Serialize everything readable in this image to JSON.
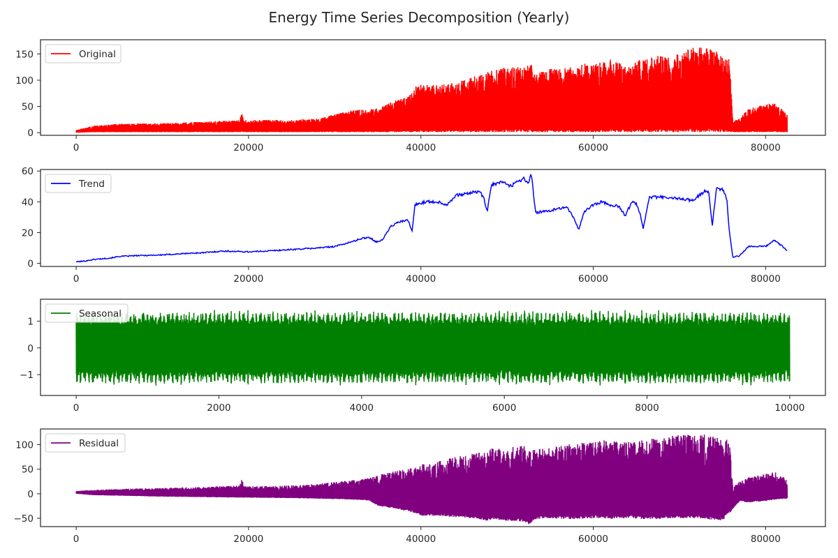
{
  "figure": {
    "title": "Energy Time Series Decomposition (Yearly)"
  },
  "chart_data": [
    {
      "type": "line",
      "name": "original",
      "legend": "Original",
      "legend_position": "upper-left",
      "color": "#ff0000",
      "xlim": [
        -4140,
        86940
      ],
      "ylim": [
        -5,
        177
      ],
      "xticks": [
        0,
        20000,
        40000,
        60000,
        80000
      ],
      "yticks": [
        0,
        50,
        100,
        150
      ],
      "grid": false,
      "x_range": [
        0,
        82500
      ],
      "envelope": {
        "x": [
          0,
          2000,
          5000,
          10000,
          15000,
          19000,
          19200,
          19500,
          25000,
          28000,
          30000,
          32000,
          34000,
          35500,
          37000,
          38500,
          39500,
          42000,
          44000,
          45500,
          47000,
          48000,
          50000,
          52000,
          52800,
          53000,
          55000,
          57000,
          60000,
          62000,
          64000,
          66000,
          70000,
          72000,
          75000,
          75800,
          76200,
          77000,
          78000,
          80000,
          81000,
          82500
        ],
        "upper": [
          5,
          13,
          17,
          18,
          21,
          24,
          38,
          24,
          25,
          27,
          35,
          43,
          45,
          50,
          62,
          68,
          92,
          91,
          95,
          105,
          110,
          118,
          125,
          125,
          133,
          110,
          122,
          125,
          135,
          140,
          125,
          145,
          150,
          168,
          152,
          145,
          20,
          30,
          45,
          55,
          58,
          35
        ],
        "lower": [
          0,
          1,
          1,
          1,
          1,
          1,
          1,
          1,
          1,
          1,
          1,
          1,
          1,
          1,
          1,
          1,
          1,
          1,
          1,
          1,
          1,
          1,
          1,
          1,
          1,
          1,
          1,
          1,
          1,
          1,
          1,
          1,
          1,
          1,
          1,
          1,
          1,
          1,
          1,
          1,
          1,
          1
        ]
      }
    },
    {
      "type": "line",
      "name": "trend",
      "legend": "Trend",
      "legend_position": "upper-left",
      "color": "#0000ff",
      "xlim": [
        -4140,
        86940
      ],
      "ylim": [
        -2,
        61
      ],
      "xticks": [
        0,
        20000,
        40000,
        60000,
        80000
      ],
      "yticks": [
        0,
        20,
        40,
        60
      ],
      "grid": false,
      "x_range": [
        0,
        82500
      ],
      "series": {
        "x": [
          0,
          1000,
          2000,
          3000,
          4000,
          5000,
          7000,
          10000,
          13000,
          15000,
          17000,
          20000,
          22000,
          25000,
          28000,
          30000,
          32000,
          33000,
          34000,
          34800,
          35500,
          36500,
          37500,
          38500,
          39000,
          39300,
          40500,
          42000,
          43000,
          44000,
          46000,
          46800,
          47300,
          47700,
          48200,
          49500,
          50500,
          51000,
          52000,
          52500,
          52800,
          53300,
          55000,
          56000,
          57000,
          57800,
          58300,
          59000,
          60000,
          61000,
          62000,
          63000,
          63700,
          64500,
          65000,
          65400,
          65800,
          66500,
          68000,
          70000,
          71500,
          72500,
          73000,
          73400,
          73800,
          74300,
          75000,
          75500,
          75800,
          76200,
          77000,
          78000,
          80000,
          81000,
          82000,
          82500
        ],
        "y": [
          1,
          1.5,
          2.5,
          3,
          3.5,
          4.5,
          5,
          5.5,
          6.5,
          7,
          8,
          7.5,
          8,
          9,
          10,
          11,
          14,
          16,
          17,
          14,
          15,
          24,
          27,
          28,
          21,
          38,
          40,
          40,
          38,
          44,
          46,
          47,
          42,
          34,
          51,
          53,
          50,
          53,
          55,
          52,
          59,
          33,
          34,
          36,
          36,
          29,
          22,
          34,
          38,
          40,
          38,
          37,
          31,
          40,
          39,
          33,
          23,
          43,
          43,
          42,
          41,
          45,
          47,
          46,
          24,
          49,
          48,
          42,
          20,
          4,
          5,
          11,
          11,
          15,
          11,
          8
        ]
      }
    },
    {
      "type": "line",
      "name": "seasonal",
      "legend": "Seasonal",
      "legend_position": "upper-left",
      "color": "#008000",
      "xlim": [
        -500,
        10500
      ],
      "ylim": [
        -1.78,
        1.82
      ],
      "xticks": [
        0,
        2000,
        4000,
        6000,
        8000,
        10000
      ],
      "yticks": [
        -1,
        0,
        1
      ],
      "grid": false,
      "x_range": [
        0,
        10000
      ],
      "band": {
        "mean_upper": 1.3,
        "mean_lower": -1.3,
        "peak_max": 1.7,
        "peak_min": -1.65
      }
    },
    {
      "type": "line",
      "name": "residual",
      "legend": "Residual",
      "legend_position": "upper-left",
      "color": "#800080",
      "xlim": [
        -4140,
        86940
      ],
      "ylim": [
        -67,
        132
      ],
      "xticks": [
        0,
        20000,
        40000,
        60000,
        80000
      ],
      "yticks": [
        -50,
        0,
        50,
        100
      ],
      "grid": false,
      "x_range": [
        0,
        82500
      ],
      "envelope": {
        "x": [
          0,
          2000,
          5000,
          10000,
          15000,
          19000,
          19200,
          19500,
          25000,
          28000,
          30000,
          32000,
          34000,
          35000,
          37000,
          38500,
          39500,
          40000,
          42000,
          44000,
          46000,
          47500,
          48500,
          50000,
          52000,
          52500,
          53200,
          55000,
          57000,
          60000,
          62000,
          64000,
          66000,
          70000,
          72000,
          75000,
          75800,
          76200,
          77000,
          78000,
          80000,
          81000,
          82500
        ],
        "upper": [
          6,
          8,
          10,
          12,
          14,
          17,
          32,
          15,
          17,
          20,
          24,
          28,
          32,
          38,
          47,
          50,
          60,
          60,
          67,
          75,
          82,
          85,
          95,
          95,
          100,
          90,
          90,
          95,
          100,
          108,
          110,
          105,
          110,
          120,
          124,
          115,
          110,
          15,
          25,
          35,
          40,
          45,
          30
        ],
        "lower": [
          0,
          -3,
          -4,
          -6,
          -7,
          -8,
          -8,
          -8,
          -9,
          -10,
          -11,
          -12,
          -14,
          -25,
          -30,
          -36,
          -40,
          -45,
          -45,
          -48,
          -50,
          -55,
          -52,
          -55,
          -57,
          -63,
          -52,
          -50,
          -52,
          -50,
          -52,
          -50,
          -52,
          -50,
          -50,
          -55,
          -40,
          -30,
          -15,
          -18,
          -15,
          -12,
          -10
        ]
      }
    }
  ],
  "colors": {
    "axis": "#262626",
    "background": "#ffffff"
  }
}
